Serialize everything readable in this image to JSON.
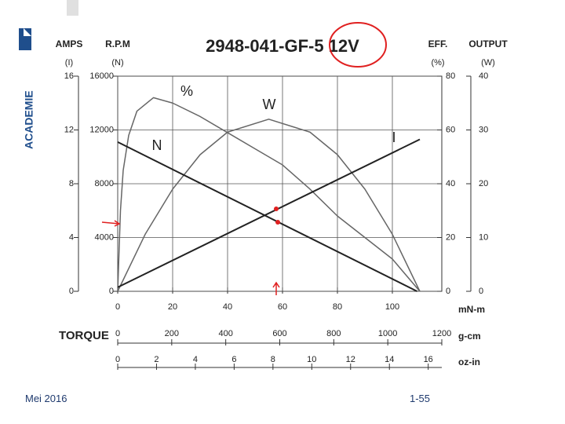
{
  "logo": "ACADEMIE",
  "footer": {
    "date": "Mei 2016",
    "page": "1-55"
  },
  "chart_data": {
    "type": "line",
    "title": "2948-041-GF-5 12V",
    "x_title": "TORQUE",
    "grid": true,
    "y_axes": [
      {
        "title": "AMPS",
        "unit": "(I)",
        "lim": [
          0,
          16
        ],
        "ticks": [
          0,
          4,
          8,
          12,
          16
        ]
      },
      {
        "title": "R.P.M",
        "unit": "(N)",
        "lim": [
          0,
          16000
        ],
        "ticks": [
          0,
          4000,
          8000,
          12000,
          16000
        ]
      },
      {
        "title": "EFF.",
        "unit": "(%)",
        "lim": [
          0,
          80
        ],
        "ticks": [
          0,
          20,
          40,
          60,
          80
        ]
      },
      {
        "title": "OUTPUT",
        "unit": "(W)",
        "lim": [
          0,
          40
        ],
        "ticks": [
          0,
          10,
          20,
          30,
          40
        ]
      }
    ],
    "x_axes": [
      {
        "title": "mN-m",
        "lim": [
          0,
          118
        ],
        "ticks": [
          0,
          20,
          40,
          60,
          80,
          100
        ]
      },
      {
        "title": "g-cm",
        "lim": [
          0,
          1200
        ],
        "ticks": [
          0,
          200,
          400,
          600,
          800,
          1000,
          1200
        ]
      },
      {
        "title": "oz-in",
        "lim": [
          0,
          16.7
        ],
        "ticks": [
          0,
          2,
          4,
          6,
          8,
          10,
          12,
          14,
          16
        ]
      }
    ],
    "series": [
      {
        "name": "%",
        "axis": 2,
        "color": "#666666",
        "x": [
          0,
          1,
          2,
          4,
          7,
          13,
          20,
          30,
          40,
          50,
          60,
          70,
          80,
          90,
          100,
          110
        ],
        "values": [
          0,
          30,
          45,
          58,
          67,
          72,
          70,
          65,
          59,
          53,
          47,
          38,
          28,
          20,
          12,
          0
        ]
      },
      {
        "name": "W",
        "axis": 3,
        "color": "#666666",
        "x": [
          0,
          10,
          20,
          30,
          40,
          55,
          70,
          80,
          90,
          100,
          110
        ],
        "values": [
          0,
          10.6,
          19,
          25.4,
          29.6,
          32,
          29.6,
          25.4,
          19,
          10.6,
          0
        ]
      },
      {
        "name": "N",
        "axis": 1,
        "color": "#222222",
        "x": [
          0,
          109
        ],
        "values": [
          11100,
          0
        ]
      },
      {
        "name": "I",
        "axis": 0,
        "color": "#222222",
        "x": [
          0,
          110
        ],
        "values": [
          0.3,
          11.3
        ]
      }
    ]
  }
}
